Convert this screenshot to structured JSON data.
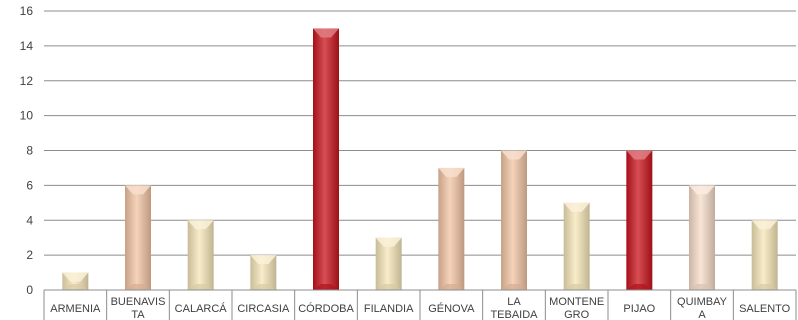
{
  "chart_data": {
    "type": "bar",
    "categories": [
      "ARMENIA",
      "BUENAVISTA",
      "CALARCÁ",
      "CIRCASIA",
      "CÓRDOBA",
      "FILANDIA",
      "GÉNOVA",
      "LA TEBAIDA",
      "MONTENEGRO",
      "PIJAO",
      "QUIMBAYA",
      "SALENTO"
    ],
    "category_label_lines": [
      [
        "ARMENIA"
      ],
      [
        "BUENAVIS",
        "TA"
      ],
      [
        "CALARCÁ"
      ],
      [
        "CIRCASIA"
      ],
      [
        "CÓRDOBA"
      ],
      [
        "FILANDIA"
      ],
      [
        "GÉNOVA"
      ],
      [
        "LA",
        "TEBAIDA"
      ],
      [
        "MONTENE",
        "GRO"
      ],
      [
        "PIJAO"
      ],
      [
        "QUIMBAY",
        "A"
      ],
      [
        "SALENTO"
      ]
    ],
    "values": [
      1,
      6,
      4,
      2,
      15,
      3,
      7,
      8,
      5,
      8,
      6,
      4
    ],
    "bar_colors": [
      "#f5e6b8",
      "#f2c4a4",
      "#f5e6b8",
      "#f5e6b8",
      "#c8141c",
      "#f5e6b8",
      "#f2c4a4",
      "#f2c4a4",
      "#f5e6b8",
      "#c8141c",
      "#f7dcc8",
      "#f5e6b8"
    ],
    "yticks": [
      0,
      2,
      4,
      6,
      8,
      10,
      12,
      14,
      16
    ],
    "ylim": [
      0,
      16
    ],
    "grid": true,
    "title": "",
    "xlabel": "",
    "ylabel": ""
  }
}
